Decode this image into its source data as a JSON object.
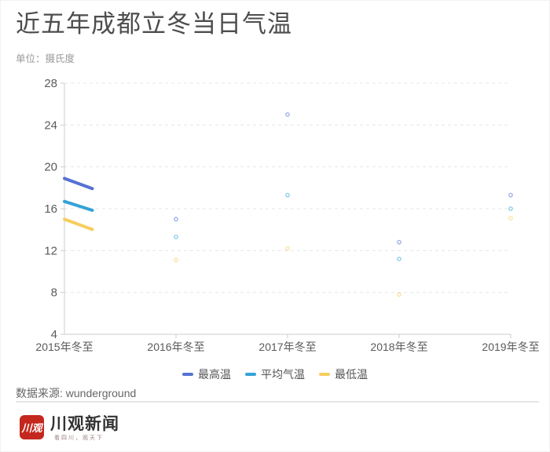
{
  "page": {
    "title": "近五年成都立冬当日气温",
    "subtitle": "单位：摄氏度",
    "source": "数据来源: wunderground"
  },
  "chart_data": {
    "type": "line",
    "title": "近五年成都立冬当日气温",
    "unit_label": "单位：摄氏度",
    "categories": [
      "2015年冬至",
      "2016年冬至",
      "2017年冬至",
      "2018年冬至",
      "2019年冬至"
    ],
    "series": [
      {
        "name": "最高温",
        "color": "#5571d3",
        "values": [
          18.9,
          15.0,
          25.0,
          12.8,
          17.3
        ]
      },
      {
        "name": "平均气温",
        "color": "#35a2d8",
        "values": [
          16.7,
          13.3,
          17.3,
          11.2,
          16.0
        ]
      },
      {
        "name": "最低温",
        "color": "#f6cd5f",
        "values": [
          15.0,
          11.1,
          12.2,
          7.8,
          15.1
        ]
      }
    ],
    "ylim": [
      4,
      28
    ],
    "y_tick_interval": 4,
    "y_tick_labels": [
      "4",
      "8",
      "12",
      "16",
      "20",
      "24",
      "28"
    ],
    "grid": "horizontal-dashed",
    "legend_position": "bottom",
    "legend": [
      "最高温",
      "平均气温",
      "最低温"
    ],
    "line_draw_progress": 0.25,
    "axis_color": "#cccccc",
    "grid_color": "#e7e7e7",
    "label_color": "#5a5a5a",
    "symbol_style": "small hollow circle"
  },
  "footer_logo": {
    "badge": "川观",
    "brand": "川观新闻",
    "slogan": "看四川，观天下",
    "brand_red": "#c4271d"
  }
}
